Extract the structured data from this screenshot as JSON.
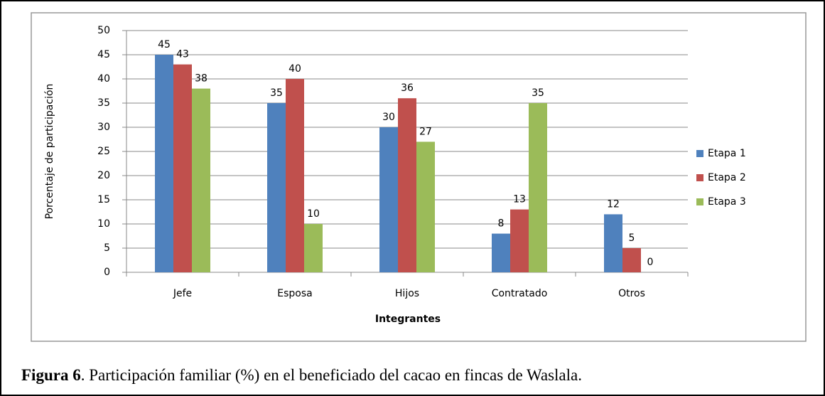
{
  "chart_data": {
    "type": "bar",
    "categories": [
      "Jefe",
      "Esposa",
      "Hijos",
      "Contratado",
      "Otros"
    ],
    "series": [
      {
        "name": "Etapa 1",
        "color": "#4f81bd",
        "values": [
          45,
          35,
          30,
          8,
          12
        ]
      },
      {
        "name": "Etapa 2",
        "color": "#c0504d",
        "values": [
          43,
          40,
          36,
          13,
          5
        ]
      },
      {
        "name": "Etapa 3",
        "color": "#9bbb59",
        "values": [
          38,
          10,
          27,
          35,
          0
        ]
      }
    ],
    "ylim": [
      0,
      50
    ],
    "yticks": [
      0,
      5,
      10,
      15,
      20,
      25,
      30,
      35,
      40,
      45,
      50
    ],
    "ylabel": "Porcentaje de participación",
    "xlabel": "Integrantes",
    "grid": true,
    "legend": "right"
  },
  "caption": {
    "label": "Figura 6",
    "text": ". Participación familiar (%) en el beneficiado del cacao en fincas de Waslala."
  }
}
